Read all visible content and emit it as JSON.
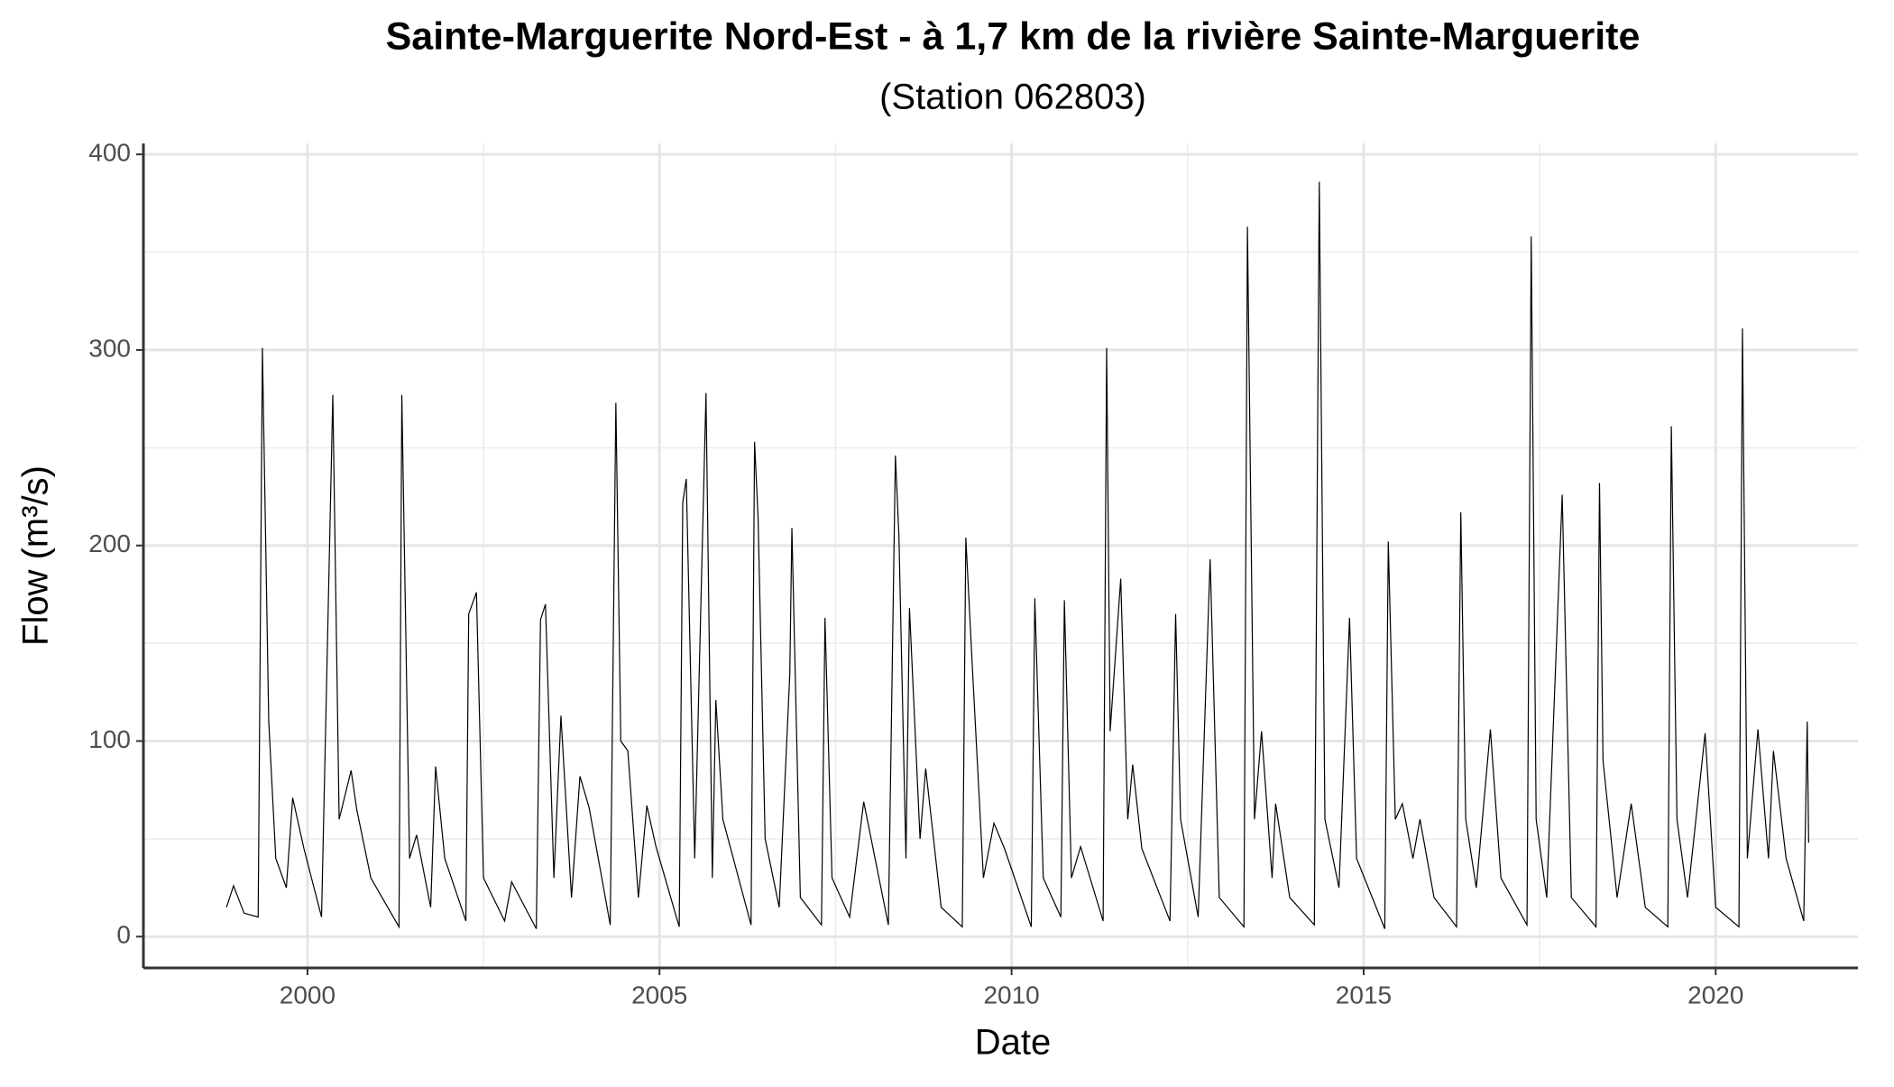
{
  "chart_data": {
    "type": "line",
    "title": "Sainte-Marguerite Nord-Est  - à 1,7 km de la rivière Sainte-Marguerite",
    "subtitle": "(Station 062803)",
    "x_label": "Date",
    "y_label": "Flow (m³/s)",
    "x": [
      1998.85,
      1998.95,
      1999.1,
      1999.3,
      1999.36,
      1999.45,
      1999.55,
      1999.7,
      1999.79,
      1999.95,
      2000.2,
      2000.36,
      2000.45,
      2000.62,
      2000.7,
      2000.9,
      2001.3,
      2001.34,
      2001.45,
      2001.55,
      2001.75,
      2001.82,
      2001.95,
      2002.25,
      2002.29,
      2002.4,
      2002.5,
      2002.8,
      2002.9,
      2003.25,
      2003.31,
      2003.38,
      2003.5,
      2003.6,
      2003.75,
      2003.87,
      2004.0,
      2004.3,
      2004.38,
      2004.45,
      2004.55,
      2004.7,
      2004.82,
      2004.95,
      2005.28,
      2005.33,
      2005.38,
      2005.5,
      2005.66,
      2005.75,
      2005.8,
      2005.9,
      2006.3,
      2006.35,
      2006.4,
      2006.5,
      2006.7,
      2006.85,
      2006.88,
      2007.0,
      2007.3,
      2007.35,
      2007.45,
      2007.7,
      2007.9,
      2008.25,
      2008.35,
      2008.4,
      2008.5,
      2008.55,
      2008.7,
      2008.78,
      2009.0,
      2009.3,
      2009.35,
      2009.45,
      2009.6,
      2009.75,
      2009.9,
      2010.28,
      2010.33,
      2010.45,
      2010.7,
      2010.75,
      2010.85,
      2010.98,
      2011.3,
      2011.35,
      2011.4,
      2011.55,
      2011.65,
      2011.72,
      2011.85,
      2012.25,
      2012.33,
      2012.4,
      2012.5,
      2012.65,
      2012.82,
      2012.95,
      2013.3,
      2013.35,
      2013.45,
      2013.55,
      2013.7,
      2013.75,
      2013.95,
      2014.3,
      2014.37,
      2014.45,
      2014.65,
      2014.8,
      2014.9,
      2015.3,
      2015.35,
      2015.45,
      2015.55,
      2015.7,
      2015.8,
      2016.0,
      2016.32,
      2016.38,
      2016.45,
      2016.6,
      2016.8,
      2016.95,
      2017.32,
      2017.38,
      2017.45,
      2017.6,
      2017.82,
      2017.95,
      2018.3,
      2018.35,
      2018.4,
      2018.6,
      2018.8,
      2019.0,
      2019.32,
      2019.37,
      2019.45,
      2019.6,
      2019.85,
      2020.0,
      2020.33,
      2020.38,
      2020.45,
      2020.6,
      2020.75,
      2020.82,
      2021.0,
      2021.25,
      2021.3,
      2021.32
    ],
    "values": [
      15,
      26,
      12,
      10,
      301,
      110,
      40,
      25,
      71,
      45,
      10,
      277,
      60,
      85,
      65,
      30,
      5,
      277,
      40,
      52,
      15,
      87,
      40,
      8,
      165,
      176,
      30,
      8,
      28,
      4,
      162,
      170,
      30,
      113,
      20,
      82,
      66,
      6,
      273,
      100,
      95,
      20,
      67,
      46,
      5,
      222,
      234,
      40,
      278,
      30,
      121,
      60,
      6,
      253,
      214,
      50,
      15,
      134,
      209,
      20,
      6,
      163,
      30,
      10,
      69,
      6,
      246,
      205,
      40,
      168,
      50,
      86,
      15,
      5,
      204,
      133,
      30,
      58,
      45,
      5,
      173,
      30,
      10,
      172,
      30,
      46,
      8,
      301,
      105,
      183,
      60,
      88,
      45,
      8,
      165,
      60,
      40,
      10,
      193,
      20,
      5,
      363,
      60,
      105,
      30,
      68,
      20,
      6,
      386,
      60,
      25,
      163,
      40,
      4,
      202,
      60,
      68,
      40,
      60,
      20,
      5,
      217,
      60,
      25,
      106,
      30,
      6,
      358,
      60,
      20,
      226,
      20,
      5,
      232,
      90,
      20,
      68,
      15,
      5,
      261,
      60,
      20,
      104,
      15,
      5,
      311,
      40,
      106,
      40,
      95,
      40,
      8,
      110,
      48
    ],
    "xlim": [
      1997.67,
      2022.02
    ],
    "ylim": [
      -16,
      405.6
    ],
    "xticks": [
      2000,
      2005,
      2010,
      2015,
      2020
    ],
    "yticks": [
      0,
      100,
      200,
      300,
      400
    ],
    "xminor": [
      1997.5,
      2002.5,
      2007.5,
      2012.5,
      2017.5,
      2022.5
    ],
    "yminor": [
      50,
      150,
      250,
      350
    ],
    "grid": true,
    "color": "#000000"
  }
}
